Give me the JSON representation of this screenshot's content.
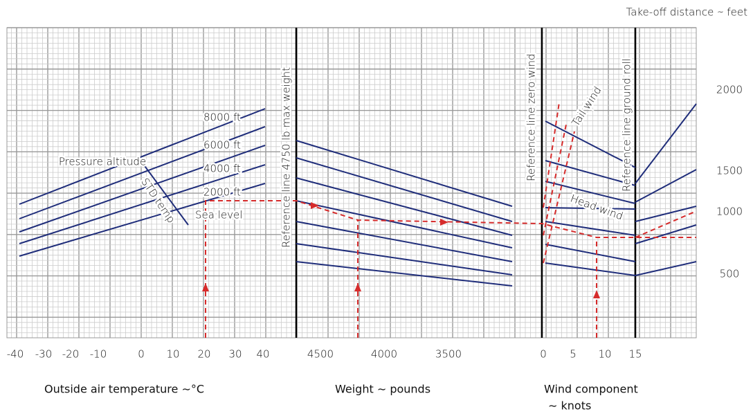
{
  "header": {
    "unit_label": "Take-off distance ∼ feet"
  },
  "distance_ticks": [
    "2000",
    "1500",
    "1000",
    "500"
  ],
  "temperature_ticks": [
    "-40",
    "-30",
    "-20",
    "-10",
    "0",
    "10",
    "20",
    "30",
    "40"
  ],
  "weight_ticks": [
    "4500",
    "4000",
    "3500"
  ],
  "wind_ticks": [
    "0",
    "5",
    "10",
    "15"
  ],
  "axis_titles": {
    "temperature": "Outside air temperature ∼°C",
    "weight": "Weight ∼ pounds",
    "wind": [
      "Wind component",
      "∼ knots"
    ]
  },
  "labels": {
    "pressure_altitude": "Pressure altitude",
    "altitudes": [
      "8000 ft",
      "6000 ft",
      "4000 ft",
      "2000 ft",
      "Sea level"
    ],
    "std_temp": "STD temp",
    "ref_weight": "Reference line 4750 lb max weight",
    "ref_wind": "Reference line zero wind",
    "ref_ground": "Reference line ground roll",
    "tail_wind": "Tail wind",
    "head_wind": "Head wind"
  }
}
